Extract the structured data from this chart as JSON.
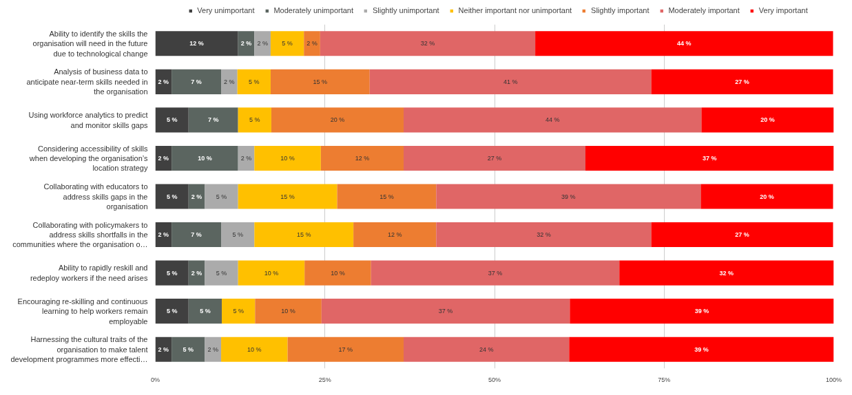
{
  "chart_data": {
    "type": "bar",
    "orientation": "horizontal",
    "stacked": true,
    "legend": "top",
    "grid": "x",
    "categories": [
      "Ability to identify the skills the organisation will need in the future due to technological change",
      "Analysis of business data to anticipate near-term skills needed in the organisation",
      "Using workforce analytics to predict and monitor skills gaps",
      "Considering accessibility of skills when developing the organisation’s location strategy",
      "Collaborating with educators to address skills gaps in the organisation",
      "Collaborating with policymakers to address skills shortfalls in the communities where the organisation o…",
      "Ability to rapidly reskill and redeploy workers if the need arises",
      "Encouraging re-skilling and continuous learning to help workers remain employable",
      "Harnessing the cultural traits of the organisation to make talent development programmes more effecti…"
    ],
    "xlim": [
      0,
      100
    ],
    "xticks": [
      {
        "value": 0,
        "label": "0%"
      },
      {
        "value": 25,
        "label": "25%"
      },
      {
        "value": 50,
        "label": "50%"
      },
      {
        "value": 75,
        "label": "75%"
      },
      {
        "value": 100,
        "label": "100%"
      }
    ],
    "series": [
      {
        "name": "Very unimportant",
        "color": "#404040",
        "values": [
          12.2,
          2.4,
          4.9,
          2.4,
          4.9,
          2.4,
          4.9,
          4.9,
          2.4
        ],
        "value_labels": [
          "12 %",
          "2 %",
          "5 %",
          "2 %",
          "5 %",
          "2 %",
          "5 %",
          "5 %",
          "2 %"
        ]
      },
      {
        "name": "Moderately unimportant",
        "color": "#5b6560",
        "values": [
          2.4,
          7.3,
          7.3,
          9.8,
          2.4,
          7.3,
          2.4,
          4.9,
          4.9
        ],
        "value_labels": [
          "2 %",
          "7 %",
          "7 %",
          "10 %",
          "2 %",
          "7 %",
          "2 %",
          "5 %",
          "5 %"
        ]
      },
      {
        "name": "Slightly unimportant",
        "color": "#ababab",
        "values": [
          2.4,
          2.4,
          0,
          2.4,
          4.9,
          4.9,
          4.9,
          0,
          2.4
        ],
        "value_labels": [
          "2 %",
          "2 %",
          null,
          "2 %",
          "5 %",
          "5 %",
          "5 %",
          null,
          "2 %"
        ]
      },
      {
        "name": "Neither important nor unimportant",
        "color": "#ffc000",
        "values": [
          4.9,
          4.9,
          4.9,
          9.8,
          14.6,
          14.6,
          9.8,
          4.9,
          9.8
        ],
        "value_labels": [
          "5 %",
          "5 %",
          "5 %",
          "10 %",
          "15 %",
          "15 %",
          "10 %",
          "5 %",
          "10 %"
        ]
      },
      {
        "name": "Slightly important",
        "color": "#ed7d31",
        "values": [
          2.4,
          14.6,
          19.5,
          12.2,
          14.6,
          12.2,
          9.8,
          9.8,
          17.1
        ],
        "value_labels": [
          "2 %",
          "15 %",
          "20 %",
          "12 %",
          "15 %",
          "12 %",
          "10 %",
          "10 %",
          "17 %"
        ]
      },
      {
        "name": "Moderately important",
        "color": "#e06666",
        "values": [
          31.7,
          41.5,
          43.9,
          26.8,
          39.0,
          31.7,
          36.6,
          36.6,
          24.4
        ],
        "value_labels": [
          "32 %",
          "41 %",
          "44 %",
          "27 %",
          "39 %",
          "32 %",
          "37 %",
          "37 %",
          "24 %"
        ]
      },
      {
        "name": "Very important",
        "color": "#ff0000",
        "values": [
          43.9,
          26.8,
          19.5,
          36.6,
          19.5,
          26.8,
          31.6,
          38.9,
          39.0
        ],
        "value_labels": [
          "44 %",
          "27 %",
          "20 %",
          "37 %",
          "20 %",
          "27 %",
          "32 %",
          "39 %",
          "39 %"
        ]
      }
    ]
  }
}
